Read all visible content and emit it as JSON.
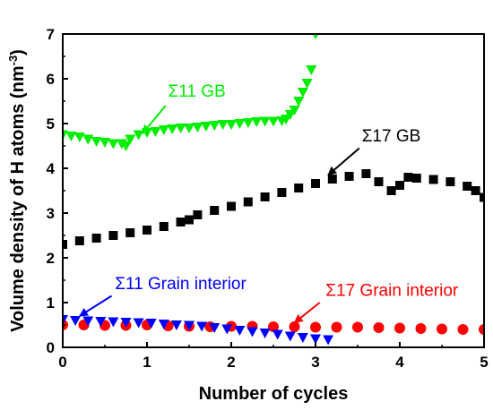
{
  "chart_data": {
    "type": "scatter",
    "xlabel": "Number of cycles",
    "ylabel_main": "Volume density of H atoms (nm",
    "ylabel_sup": "-3",
    "ylabel_tail": ")",
    "xlim": [
      0,
      5
    ],
    "ylim": [
      0,
      7
    ],
    "xticks": [
      "0",
      "1",
      "2",
      "3",
      "4",
      "5"
    ],
    "yticks": [
      "0",
      "1",
      "2",
      "3",
      "4",
      "5",
      "6",
      "7"
    ],
    "grid": false,
    "legend": "none",
    "series": [
      {
        "key": "s11gb",
        "marker": "triangle-down",
        "color": "#00ee00",
        "x": [
          0.0,
          0.1,
          0.2,
          0.3,
          0.4,
          0.5,
          0.6,
          0.7,
          0.75,
          0.8,
          0.9,
          1.0,
          1.1,
          1.2,
          1.3,
          1.4,
          1.5,
          1.6,
          1.7,
          1.8,
          1.9,
          2.0,
          2.1,
          2.2,
          2.3,
          2.4,
          2.5,
          2.6,
          2.65,
          2.7,
          2.75,
          2.8,
          2.85,
          2.9,
          2.95,
          3.0
        ],
        "y": [
          4.75,
          4.72,
          4.7,
          4.65,
          4.6,
          4.58,
          4.55,
          4.55,
          4.5,
          4.65,
          4.75,
          4.8,
          4.82,
          4.86,
          4.88,
          4.9,
          4.9,
          4.92,
          4.94,
          4.96,
          4.98,
          4.98,
          5.0,
          5.02,
          5.04,
          5.05,
          5.05,
          5.06,
          5.1,
          5.2,
          5.3,
          5.5,
          5.7,
          5.9,
          6.2,
          7.0
        ]
      },
      {
        "key": "s17gb",
        "marker": "square",
        "color": "#000000",
        "x": [
          0.0,
          0.2,
          0.4,
          0.6,
          0.8,
          1.0,
          1.2,
          1.4,
          1.5,
          1.6,
          1.8,
          2.0,
          2.2,
          2.4,
          2.6,
          2.8,
          3.0,
          3.2,
          3.4,
          3.6,
          3.75,
          3.9,
          4.0,
          4.1,
          4.2,
          4.4,
          4.6,
          4.8,
          4.9,
          5.0
        ],
        "y": [
          2.3,
          2.38,
          2.44,
          2.5,
          2.56,
          2.62,
          2.7,
          2.8,
          2.85,
          2.96,
          3.06,
          3.15,
          3.25,
          3.36,
          3.46,
          3.56,
          3.66,
          3.76,
          3.82,
          3.88,
          3.7,
          3.5,
          3.62,
          3.8,
          3.78,
          3.75,
          3.7,
          3.6,
          3.5,
          3.35
        ]
      },
      {
        "key": "s17gi",
        "marker": "circle",
        "color": "#ff0000",
        "x": [
          0.0,
          0.25,
          0.5,
          0.75,
          1.0,
          1.25,
          1.5,
          1.75,
          2.0,
          2.25,
          2.5,
          2.75,
          3.0,
          3.25,
          3.5,
          3.75,
          4.0,
          4.25,
          4.5,
          4.75,
          5.0
        ],
        "y": [
          0.5,
          0.5,
          0.49,
          0.49,
          0.5,
          0.48,
          0.47,
          0.46,
          0.47,
          0.47,
          0.46,
          0.46,
          0.45,
          0.45,
          0.45,
          0.44,
          0.43,
          0.42,
          0.41,
          0.4,
          0.4
        ]
      },
      {
        "key": "s11gi",
        "marker": "triangle-down",
        "color": "#0000ff",
        "x": [
          0.0,
          0.15,
          0.3,
          0.45,
          0.6,
          0.75,
          0.9,
          1.05,
          1.2,
          1.35,
          1.5,
          1.65,
          1.8,
          1.95,
          2.1,
          2.25,
          2.4,
          2.55,
          2.7,
          2.85,
          3.0,
          3.15
        ],
        "y": [
          0.62,
          0.6,
          0.59,
          0.58,
          0.57,
          0.56,
          0.55,
          0.54,
          0.52,
          0.5,
          0.49,
          0.47,
          0.44,
          0.41,
          0.38,
          0.35,
          0.32,
          0.29,
          0.25,
          0.22,
          0.19,
          0.17
        ]
      }
    ],
    "annotations": [
      {
        "key": "s11gb",
        "text": "Σ11 GB",
        "color": "#00ee00",
        "tx": 1.25,
        "ty": 5.6,
        "ax0": 1.22,
        "ay0": 5.4,
        "ax1": 0.95,
        "ay1": 4.78
      },
      {
        "key": "s17gb",
        "text": "Σ17 GB",
        "color": "#000000",
        "tx": 3.55,
        "ty": 4.6,
        "ax0": 3.52,
        "ay0": 4.45,
        "ax1": 3.15,
        "ay1": 3.85
      },
      {
        "key": "s11gi",
        "text": "Σ11 Grain interior",
        "color": "#0000ff",
        "tx": 0.62,
        "ty": 1.3,
        "ax0": 0.58,
        "ay0": 1.15,
        "ax1": 0.2,
        "ay1": 0.7
      },
      {
        "key": "s17gi",
        "text": "Σ17 Grain interior",
        "color": "#ff0000",
        "tx": 3.12,
        "ty": 1.15,
        "ax0": 3.05,
        "ay0": 1.0,
        "ax1": 2.75,
        "ay1": 0.55
      }
    ]
  }
}
